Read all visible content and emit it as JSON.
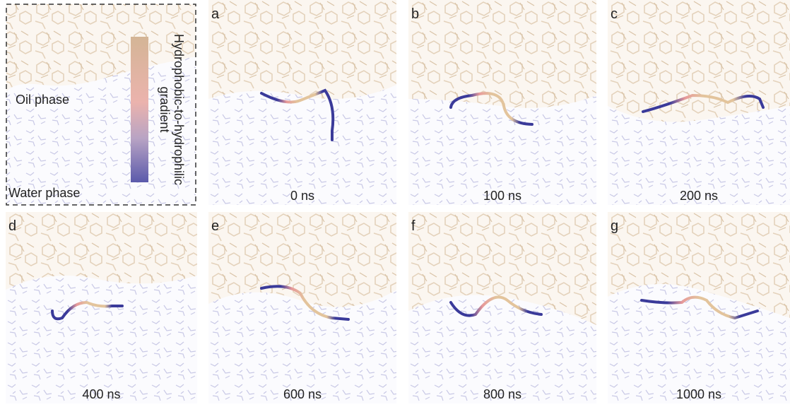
{
  "legend": {
    "oil_label": "Oil phase",
    "water_label": "Water phase",
    "gradient_label": [
      "Hydrophobic-to-hydrophilic",
      "gradient"
    ]
  },
  "panels": [
    {
      "label": "a",
      "time": "0 ns"
    },
    {
      "label": "b",
      "time": "100 ns"
    },
    {
      "label": "c",
      "time": "200 ns"
    },
    {
      "label": "d",
      "time": "400 ns"
    },
    {
      "label": "e",
      "time": "600 ns"
    },
    {
      "label": "f",
      "time": "800 ns"
    },
    {
      "label": "g",
      "time": "1000 ns"
    }
  ]
}
